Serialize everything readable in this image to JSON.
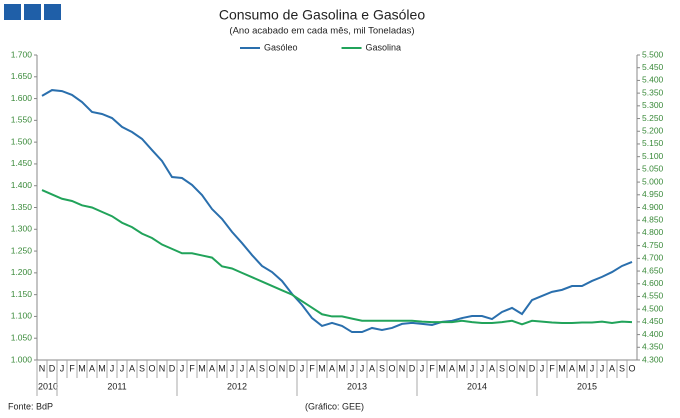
{
  "chart_data": {
    "type": "line",
    "title": "Consumo de Gasolina e Gasóleo",
    "subtitle": "(Ano acabado em cada mês, mil Toneladas)",
    "source": "Fonte: BdP",
    "credit": "(Gráfico: GEE)",
    "categories": [
      "N",
      "D",
      "J",
      "F",
      "M",
      "A",
      "M",
      "J",
      "J",
      "A",
      "S",
      "O",
      "N",
      "D",
      "J",
      "F",
      "M",
      "A",
      "M",
      "J",
      "J",
      "A",
      "S",
      "O",
      "N",
      "D",
      "J",
      "F",
      "M",
      "A",
      "M",
      "J",
      "J",
      "A",
      "S",
      "O",
      "N",
      "D",
      "J",
      "F",
      "M",
      "A",
      "M",
      "J",
      "J",
      "A",
      "S",
      "O",
      "N",
      "D",
      "J",
      "F",
      "M",
      "A",
      "M",
      "J",
      "J",
      "A",
      "S",
      "O"
    ],
    "years": [
      "2010",
      "2011",
      "2012",
      "2013",
      "2014",
      "2015"
    ],
    "series": [
      {
        "name": "Gasóleo",
        "color": "#2a6fad",
        "axis": "y2",
        "values": [
          5.339,
          5.362,
          5.358,
          5.343,
          5.315,
          5.276,
          5.268,
          5.252,
          5.217,
          5.197,
          5.17,
          5.126,
          5.083,
          5.02,
          5.016,
          4.989,
          4.949,
          4.894,
          4.855,
          4.804,
          4.76,
          4.713,
          4.67,
          4.646,
          4.611,
          4.56,
          4.517,
          4.465,
          4.434,
          4.446,
          4.434,
          4.41,
          4.41,
          4.426,
          4.418,
          4.426,
          4.442,
          4.446,
          4.442,
          4.438,
          4.45,
          4.454,
          4.465,
          4.473,
          4.473,
          4.461,
          4.489,
          4.505,
          4.481,
          4.536,
          4.552,
          4.568,
          4.576,
          4.591,
          4.591,
          4.611,
          4.627,
          4.646,
          4.67,
          4.686
        ]
      },
      {
        "name": "Gasolina",
        "color": "#21a35a",
        "values": [
          1.39,
          1.38,
          1.37,
          1.365,
          1.355,
          1.35,
          1.34,
          1.33,
          1.315,
          1.305,
          1.29,
          1.28,
          1.265,
          1.255,
          1.245,
          1.245,
          1.24,
          1.235,
          1.215,
          1.21,
          1.2,
          1.19,
          1.18,
          1.17,
          1.16,
          1.15,
          1.135,
          1.12,
          1.105,
          1.1,
          1.1,
          1.095,
          1.09,
          1.09,
          1.09,
          1.09,
          1.09,
          1.09,
          1.088,
          1.087,
          1.087,
          1.087,
          1.09,
          1.087,
          1.085,
          1.085,
          1.087,
          1.09,
          1.082,
          1.09,
          1.088,
          1.086,
          1.085,
          1.085,
          1.086,
          1.086,
          1.088,
          1.085,
          1.088,
          1.087
        ]
      }
    ],
    "ylim": [
      1.0,
      1.7
    ],
    "yticks": [
      {
        "value": 1.0,
        "label": "1.000"
      },
      {
        "value": 1.05,
        "label": "1.050"
      },
      {
        "value": 1.1,
        "label": "1.100"
      },
      {
        "value": 1.15,
        "label": "1.150"
      },
      {
        "value": 1.2,
        "label": "1.200"
      },
      {
        "value": 1.25,
        "label": "1.250"
      },
      {
        "value": 1.3,
        "label": "1.300"
      },
      {
        "value": 1.35,
        "label": "1.350"
      },
      {
        "value": 1.4,
        "label": "1.400"
      },
      {
        "value": 1.45,
        "label": "1.450"
      },
      {
        "value": 1.5,
        "label": "1.500"
      },
      {
        "value": 1.55,
        "label": "1.550"
      },
      {
        "value": 1.6,
        "label": "1.600"
      },
      {
        "value": 1.65,
        "label": "1.650"
      },
      {
        "value": 1.7,
        "label": "1.700"
      }
    ],
    "y2lim": [
      4.3,
      5.5
    ],
    "y2ticks": [
      {
        "value": 4.3,
        "label": "4.300"
      },
      {
        "value": 4.35,
        "label": "4.350"
      },
      {
        "value": 4.4,
        "label": "4.400"
      },
      {
        "value": 4.45,
        "label": "4.450"
      },
      {
        "value": 4.5,
        "label": "4.500"
      },
      {
        "value": 4.55,
        "label": "4.550"
      },
      {
        "value": 4.6,
        "label": "4.600"
      },
      {
        "value": 4.65,
        "label": "4.650"
      },
      {
        "value": 4.7,
        "label": "4.700"
      },
      {
        "value": 4.75,
        "label": "4.750"
      },
      {
        "value": 4.8,
        "label": "4.800"
      },
      {
        "value": 4.85,
        "label": "4.850"
      },
      {
        "value": 4.9,
        "label": "4.900"
      },
      {
        "value": 4.95,
        "label": "4.950"
      },
      {
        "value": 5.0,
        "label": "5.000"
      },
      {
        "value": 5.05,
        "label": "5.050"
      },
      {
        "value": 5.1,
        "label": "5.100"
      },
      {
        "value": 5.15,
        "label": "5.150"
      },
      {
        "value": 5.2,
        "label": "5.200"
      },
      {
        "value": 5.25,
        "label": "5.250"
      },
      {
        "value": 5.3,
        "label": "5.300"
      },
      {
        "value": 5.35,
        "label": "5.350"
      },
      {
        "value": 5.4,
        "label": "5.400"
      },
      {
        "value": 5.45,
        "label": "5.450"
      },
      {
        "value": 5.5,
        "label": "5.500"
      }
    ],
    "legend": "top"
  }
}
